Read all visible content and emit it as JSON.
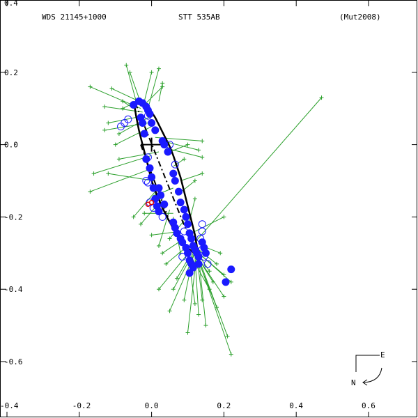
{
  "header": {
    "left": "WDS 21145+1000",
    "center": "STT 535AB",
    "right": "(Mut2008)"
  },
  "compass": {
    "east": "E",
    "north": "N"
  },
  "chart_data": {
    "type": "scatter",
    "title": "STT 535AB",
    "xlim": [
      -0.4,
      0.72
    ],
    "ylim": [
      -0.72,
      0.4
    ],
    "x_ticks": [
      {
        "value": -0.4,
        "label": "-0.4"
      },
      {
        "value": -0.2,
        "label": "-0.2"
      },
      {
        "value": 0.0,
        "label": "0.0"
      },
      {
        "value": 0.2,
        "label": "0.2"
      },
      {
        "value": 0.4,
        "label": "0.4"
      },
      {
        "value": 0.6,
        "label": "0.6"
      }
    ],
    "y_ticks": [
      {
        "value": 0.4,
        "label": "0.4"
      },
      {
        "value": 0.2,
        "label": "0.2"
      },
      {
        "value": 0.0,
        "label": "0.0"
      },
      {
        "value": -0.2,
        "label": "-0.2"
      },
      {
        "value": -0.4,
        "label": "-0.4"
      },
      {
        "value": -0.6,
        "label": "-0.6"
      }
    ],
    "orbit_points": [
      [
        -0.045,
        0.12
      ],
      [
        -0.04,
        0.122
      ],
      [
        -0.03,
        0.12
      ],
      [
        -0.022,
        0.115
      ],
      [
        -0.015,
        0.11
      ],
      [
        -0.008,
        0.1
      ],
      [
        0.0,
        0.09
      ],
      [
        0.01,
        0.075
      ],
      [
        0.02,
        0.055
      ],
      [
        0.03,
        0.035
      ],
      [
        0.04,
        0.015
      ],
      [
        0.05,
        -0.005
      ],
      [
        0.06,
        -0.03
      ],
      [
        0.07,
        -0.06
      ],
      [
        0.08,
        -0.09
      ],
      [
        0.09,
        -0.13
      ],
      [
        0.1,
        -0.17
      ],
      [
        0.11,
        -0.21
      ],
      [
        0.12,
        -0.25
      ],
      [
        0.125,
        -0.28
      ],
      [
        0.128,
        -0.3
      ],
      [
        0.12,
        -0.302
      ],
      [
        0.105,
        -0.29
      ],
      [
        0.09,
        -0.275
      ],
      [
        0.075,
        -0.255
      ],
      [
        0.06,
        -0.232
      ],
      [
        0.045,
        -0.205
      ],
      [
        0.03,
        -0.175
      ],
      [
        0.015,
        -0.14
      ],
      [
        0.0,
        -0.1
      ],
      [
        -0.012,
        -0.05
      ],
      [
        -0.025,
        0.0
      ],
      [
        -0.035,
        0.04
      ],
      [
        -0.043,
        0.08
      ],
      [
        -0.047,
        0.105
      ],
      [
        -0.045,
        0.12
      ]
    ],
    "periastron_line": [
      [
        -0.045,
        0.115
      ],
      [
        0.12,
        -0.298
      ]
    ],
    "node_line": [
      [
        -0.03,
        0.0
      ],
      [
        0.045,
        -0.2
      ]
    ],
    "primary": [
      0.0,
      0.0
    ],
    "node_cross": [
      [
        -0.03,
        0.0
      ],
      [
        0.04,
        0.0
      ]
    ],
    "filled_obs": [
      [
        -0.05,
        0.11
      ],
      [
        -0.035,
        0.12
      ],
      [
        -0.025,
        0.115
      ],
      [
        -0.015,
        0.105
      ],
      [
        -0.01,
        0.095
      ],
      [
        -0.005,
        0.085
      ],
      [
        -0.025,
        0.06
      ],
      [
        -0.02,
        0.03
      ],
      [
        0.03,
        0.01
      ],
      [
        0.035,
        0.0
      ],
      [
        -0.015,
        -0.04
      ],
      [
        -0.005,
        -0.065
      ],
      [
        0.0,
        -0.09
      ],
      [
        0.005,
        -0.12
      ],
      [
        0.01,
        -0.15
      ],
      [
        0.015,
        -0.17
      ],
      [
        0.02,
        -0.185
      ],
      [
        0.06,
        -0.08
      ],
      [
        0.065,
        -0.1
      ],
      [
        0.075,
        -0.13
      ],
      [
        0.08,
        -0.16
      ],
      [
        0.09,
        -0.18
      ],
      [
        0.095,
        -0.2
      ],
      [
        0.1,
        -0.22
      ],
      [
        0.105,
        -0.245
      ],
      [
        0.11,
        -0.26
      ],
      [
        0.115,
        -0.28
      ],
      [
        0.12,
        -0.29
      ],
      [
        0.125,
        -0.3
      ],
      [
        0.13,
        -0.31
      ],
      [
        0.14,
        -0.27
      ],
      [
        0.145,
        -0.285
      ],
      [
        0.15,
        -0.3
      ],
      [
        0.13,
        -0.33
      ],
      [
        0.11,
        -0.33
      ],
      [
        0.105,
        -0.32
      ],
      [
        0.1,
        -0.3
      ],
      [
        0.095,
        -0.285
      ],
      [
        0.085,
        -0.27
      ],
      [
        0.08,
        -0.26
      ],
      [
        0.07,
        -0.245
      ],
      [
        0.065,
        -0.23
      ],
      [
        0.06,
        -0.215
      ],
      [
        0.115,
        -0.34
      ],
      [
        0.105,
        -0.355
      ],
      [
        0.22,
        -0.345
      ],
      [
        0.205,
        -0.38
      ],
      [
        0.035,
        -0.165
      ],
      [
        0.025,
        -0.14
      ],
      [
        0.02,
        -0.12
      ],
      [
        -0.03,
        0.075
      ],
      [
        0.0,
        0.06
      ],
      [
        0.01,
        0.04
      ],
      [
        0.045,
        -0.02
      ]
    ],
    "open_obs": [
      [
        -0.085,
        0.05
      ],
      [
        -0.075,
        0.06
      ],
      [
        -0.065,
        0.07
      ],
      [
        -0.01,
        0.08
      ],
      [
        0.05,
        0.0
      ],
      [
        -0.01,
        -0.035
      ],
      [
        0.065,
        -0.055
      ],
      [
        -0.015,
        -0.1
      ],
      [
        -0.01,
        -0.105
      ],
      [
        -0.005,
        -0.16
      ],
      [
        0.14,
        -0.22
      ],
      [
        0.14,
        -0.24
      ],
      [
        0.135,
        -0.26
      ],
      [
        0.09,
        -0.24
      ],
      [
        0.145,
        -0.31
      ],
      [
        0.155,
        -0.33
      ],
      [
        0.085,
        -0.31
      ],
      [
        0.005,
        -0.175
      ],
      [
        0.03,
        -0.2
      ],
      [
        0.14,
        -0.29
      ]
    ],
    "residuals": [
      [
        [
          -0.04,
          0.11
        ],
        [
          -0.07,
          0.22
        ]
      ],
      [
        [
          -0.03,
          0.115
        ],
        [
          -0.06,
          0.2
        ]
      ],
      [
        [
          -0.02,
          0.11
        ],
        [
          0.03,
          0.16
        ]
      ],
      [
        [
          -0.035,
          0.12
        ],
        [
          -0.11,
          0.155
        ]
      ],
      [
        [
          -0.03,
          0.1
        ],
        [
          -0.17,
          0.16
        ]
      ],
      [
        [
          -0.025,
          0.09
        ],
        [
          -0.13,
          0.105
        ]
      ],
      [
        [
          -0.02,
          0.08
        ],
        [
          -0.12,
          0.06
        ]
      ],
      [
        [
          -0.01,
          0.06
        ],
        [
          -0.13,
          0.04
        ]
      ],
      [
        [
          0.0,
          0.05
        ],
        [
          -0.1,
          0.0
        ]
      ],
      [
        [
          0.01,
          0.02
        ],
        [
          0.14,
          0.01
        ]
      ],
      [
        [
          0.03,
          0.01
        ],
        [
          0.13,
          -0.015
        ]
      ],
      [
        [
          0.04,
          -0.01
        ],
        [
          0.14,
          -0.035
        ]
      ],
      [
        [
          0.02,
          -0.02
        ],
        [
          -0.09,
          -0.04
        ]
      ],
      [
        [
          0.0,
          -0.03
        ],
        [
          -0.16,
          -0.08
        ]
      ],
      [
        [
          -0.01,
          -0.07
        ],
        [
          -0.17,
          -0.13
        ]
      ],
      [
        [
          0.005,
          -0.1
        ],
        [
          -0.12,
          -0.08
        ]
      ],
      [
        [
          0.01,
          -0.13
        ],
        [
          -0.05,
          -0.2
        ]
      ],
      [
        [
          0.03,
          -0.15
        ],
        [
          -0.03,
          -0.22
        ]
      ],
      [
        [
          0.05,
          -0.18
        ],
        [
          0.02,
          -0.28
        ]
      ],
      [
        [
          0.06,
          -0.2
        ],
        [
          0.08,
          -0.3
        ]
      ],
      [
        [
          0.1,
          -0.25
        ],
        [
          0.2,
          -0.2
        ]
      ],
      [
        [
          0.12,
          -0.27
        ],
        [
          0.47,
          0.13
        ]
      ],
      [
        [
          0.12,
          -0.29
        ],
        [
          0.22,
          -0.58
        ]
      ],
      [
        [
          0.125,
          -0.3
        ],
        [
          0.21,
          -0.53
        ]
      ],
      [
        [
          0.13,
          -0.31
        ],
        [
          0.15,
          -0.5
        ]
      ],
      [
        [
          0.125,
          -0.3
        ],
        [
          0.1,
          -0.52
        ]
      ],
      [
        [
          0.12,
          -0.3
        ],
        [
          0.05,
          -0.46
        ]
      ],
      [
        [
          0.115,
          -0.3
        ],
        [
          0.06,
          -0.4
        ]
      ],
      [
        [
          0.11,
          -0.29
        ],
        [
          0.02,
          -0.4
        ]
      ],
      [
        [
          0.12,
          -0.3
        ],
        [
          0.2,
          -0.42
        ]
      ],
      [
        [
          0.125,
          -0.31
        ],
        [
          0.18,
          -0.45
        ]
      ],
      [
        [
          0.13,
          -0.3
        ],
        [
          0.22,
          -0.38
        ]
      ],
      [
        [
          0.13,
          -0.3
        ],
        [
          0.2,
          -0.36
        ]
      ],
      [
        [
          0.13,
          -0.29
        ],
        [
          0.18,
          -0.33
        ]
      ],
      [
        [
          0.14,
          -0.28
        ],
        [
          0.19,
          -0.3
        ]
      ],
      [
        [
          0.12,
          -0.31
        ],
        [
          0.13,
          -0.47
        ]
      ],
      [
        [
          0.125,
          -0.305
        ],
        [
          0.14,
          -0.43
        ]
      ],
      [
        [
          0.115,
          -0.305
        ],
        [
          0.09,
          -0.43
        ]
      ],
      [
        [
          0.11,
          -0.3
        ],
        [
          0.07,
          -0.37
        ]
      ],
      [
        [
          0.1,
          -0.28
        ],
        [
          0.04,
          -0.33
        ]
      ],
      [
        [
          0.09,
          -0.26
        ],
        [
          0.03,
          -0.3
        ]
      ],
      [
        [
          0.08,
          -0.24
        ],
        [
          0.0,
          -0.25
        ]
      ],
      [
        [
          0.06,
          -0.19
        ],
        [
          -0.02,
          -0.19
        ]
      ],
      [
        [
          0.07,
          -0.14
        ],
        [
          0.12,
          -0.1
        ]
      ],
      [
        [
          0.08,
          -0.1
        ],
        [
          0.14,
          -0.08
        ]
      ],
      [
        [
          0.06,
          -0.06
        ],
        [
          0.09,
          -0.04
        ]
      ],
      [
        [
          0.05,
          -0.02
        ],
        [
          0.1,
          0.0
        ]
      ],
      [
        [
          -0.01,
          0.1
        ],
        [
          0.02,
          0.21
        ]
      ],
      [
        [
          -0.02,
          0.12
        ],
        [
          0.0,
          0.2
        ]
      ],
      [
        [
          -0.04,
          0.12
        ],
        [
          -0.08,
          0.1
        ]
      ],
      [
        [
          0.12,
          -0.29
        ],
        [
          0.16,
          -0.35
        ]
      ],
      [
        [
          0.12,
          -0.3
        ],
        [
          0.17,
          -0.38
        ]
      ],
      [
        [
          0.11,
          -0.31
        ],
        [
          0.16,
          -0.4
        ]
      ],
      [
        [
          0.1,
          -0.3
        ],
        [
          0.12,
          -0.44
        ]
      ],
      [
        [
          0.0,
          0.08
        ],
        [
          -0.09,
          0.03
        ]
      ],
      [
        [
          -0.05,
          0.1
        ],
        [
          -0.08,
          0.12
        ]
      ],
      [
        [
          0.02,
          0.12
        ],
        [
          0.03,
          0.17
        ]
      ],
      [
        [
          0.06,
          -0.12
        ],
        [
          0.01,
          -0.14
        ]
      ],
      [
        [
          0.09,
          -0.21
        ],
        [
          0.05,
          -0.26
        ]
      ],
      [
        [
          0.1,
          -0.23
        ],
        [
          0.12,
          -0.15
        ]
      ]
    ],
    "red_obs": [
      [
        -0.01,
        -0.165
      ],
      [
        0.0,
        -0.16
      ]
    ],
    "legend": "none",
    "grid": false
  }
}
